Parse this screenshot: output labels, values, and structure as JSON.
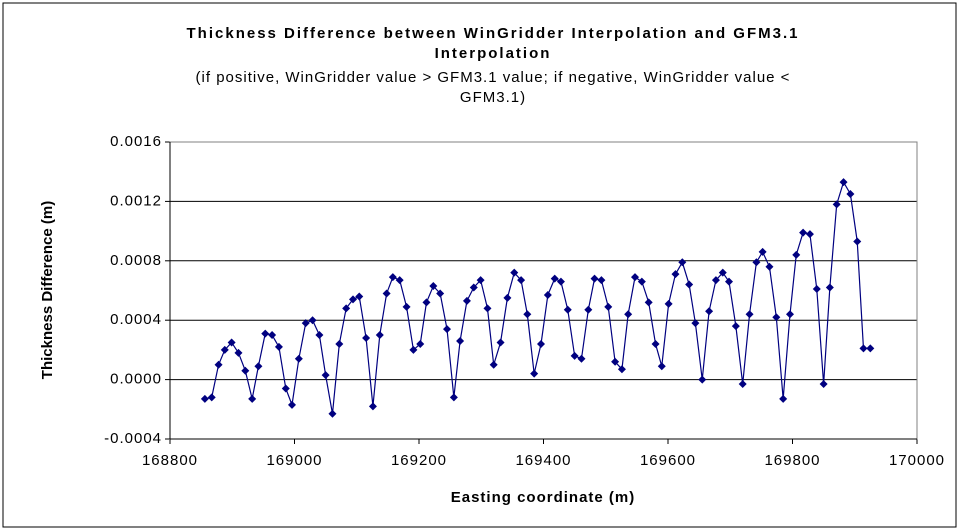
{
  "chart_data": {
    "type": "line",
    "title": "Thickness Difference between WinGridder Interpolation and GFM3.1 Interpolation",
    "subtitle": "(if positive, WinGridder value > GFM3.1 value; if negative, WinGridder value < GFM3.1)",
    "x_label": "Easting coordinate (m)",
    "y_label": "Thickness Difference (m)",
    "xlim": [
      168800,
      170000
    ],
    "xticks": [
      168800,
      169000,
      169200,
      169400,
      169600,
      169800,
      170000
    ],
    "ylim": [
      -0.0004,
      0.0016
    ],
    "yticks": [
      -0.0004,
      {
        "value": 0,
        "label": "0.0000"
      },
      0.0004,
      0.0008,
      0.0012,
      0.0016
    ],
    "grid": true,
    "x": [
      168856,
      168867,
      168878,
      168888,
      168899,
      168910,
      168921,
      168932,
      168942,
      168953,
      168964,
      168975,
      168986,
      168996,
      169007,
      169018,
      169029,
      169040,
      169050,
      169061,
      169072,
      169083,
      169094,
      169104,
      169115,
      169126,
      169137,
      169148,
      169158,
      169169,
      169180,
      169191,
      169202,
      169212,
      169223,
      169234,
      169245,
      169256,
      169266,
      169277,
      169288,
      169299,
      169310,
      169320,
      169331,
      169342,
      169353,
      169364,
      169374,
      169385,
      169396,
      169407,
      169418,
      169428,
      169439,
      169450,
      169461,
      169472,
      169482,
      169493,
      169504,
      169515,
      169526,
      169536,
      169547,
      169558,
      169569,
      169580,
      169590,
      169601,
      169612,
      169623,
      169634,
      169644,
      169655,
      169666,
      169677,
      169688,
      169698,
      169709,
      169720,
      169731,
      169742,
      169752,
      169763,
      169774,
      169785,
      169796,
      169806,
      169817,
      169828,
      169839,
      169850,
      169860,
      169871,
      169882,
      169893,
      169904,
      169914,
      169925
    ],
    "series": [
      {
        "color": "#000080",
        "values": [
          -0.00013,
          -0.00012,
          0.0001,
          0.0002,
          0.00025,
          0.00018,
          6e-05,
          -0.00013,
          9e-05,
          0.00031,
          0.0003,
          0.00022,
          -6e-05,
          -0.00017,
          0.00014,
          0.00038,
          0.0004,
          0.0003,
          3e-05,
          -0.00023,
          0.00024,
          0.00048,
          0.00054,
          0.00056,
          0.00028,
          -0.00018,
          0.0003,
          0.00058,
          0.00069,
          0.00067,
          0.00049,
          0.0002,
          0.00024,
          0.00052,
          0.00063,
          0.00058,
          0.00034,
          -0.00012,
          0.00026,
          0.00053,
          0.00062,
          0.00067,
          0.00048,
          0.0001,
          0.00025,
          0.00055,
          0.00072,
          0.00067,
          0.00044,
          4e-05,
          0.00024,
          0.00057,
          0.00068,
          0.00066,
          0.00047,
          0.00016,
          0.00014,
          0.00047,
          0.00068,
          0.00067,
          0.00049,
          0.00012,
          7e-05,
          0.00044,
          0.00069,
          0.00066,
          0.00052,
          0.00024,
          9e-05,
          0.00051,
          0.00071,
          0.00079,
          0.00064,
          0.00038,
          0.0,
          0.00046,
          0.00067,
          0.00072,
          0.00066,
          0.00036,
          -3e-05,
          0.00044,
          0.00079,
          0.00086,
          0.00076,
          0.00042,
          -0.00013,
          0.00044,
          0.00084,
          0.00099,
          0.00098,
          0.00061,
          -3e-05,
          0.00062,
          0.00118,
          0.00133,
          0.00125,
          0.00093,
          0.00021,
          0.00021
        ]
      }
    ]
  }
}
